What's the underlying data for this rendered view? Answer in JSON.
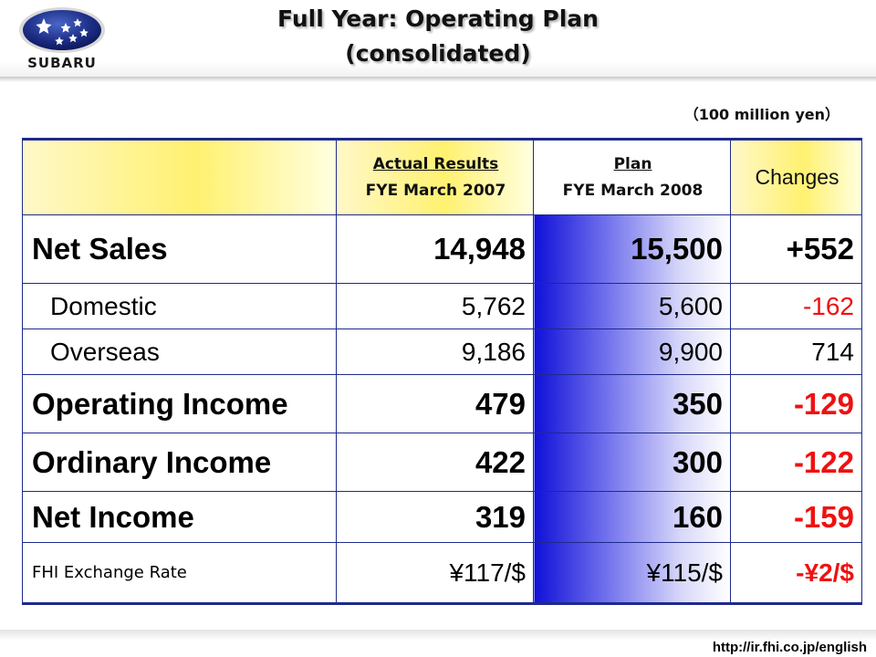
{
  "header": {
    "logo_text": "SUBARU",
    "title_line1": "Full Year: Operating Plan",
    "title_line2": "(consolidated)"
  },
  "unit_label": "（100 million yen）",
  "table": {
    "columns": {
      "actual_line1": "Actual Results",
      "actual_line2": "FYE March 2007",
      "plan_line1": "Plan",
      "plan_line2": "FYE March 2008",
      "changes": "Changes"
    },
    "rows": [
      {
        "label": "Net Sales",
        "actual": "14,948",
        "plan": "15,500",
        "change": "+552"
      },
      {
        "label": "Domestic",
        "actual": "5,762",
        "plan": "5,600",
        "change": "-162"
      },
      {
        "label": "Overseas",
        "actual": "9,186",
        "plan": "9,900",
        "change": "714"
      },
      {
        "label": "Operating Income",
        "actual": "479",
        "plan": "350",
        "change": "-129"
      },
      {
        "label": "Ordinary Income",
        "actual": "422",
        "plan": "300",
        "change": "-122"
      },
      {
        "label": "Net Income",
        "actual": "319",
        "plan": "160",
        "change": "-159"
      },
      {
        "label": "FHI Exchange Rate",
        "actual": "¥117/$",
        "plan": "¥115/$",
        "change": "-¥2/$"
      }
    ]
  },
  "footer": {
    "url": "http://ir.fhi.co.jp/english"
  },
  "colors": {
    "border": "#1e2a8c",
    "negative": "#ee1111",
    "header_fill": "#fff170",
    "plan_fill": "#1010d8"
  }
}
